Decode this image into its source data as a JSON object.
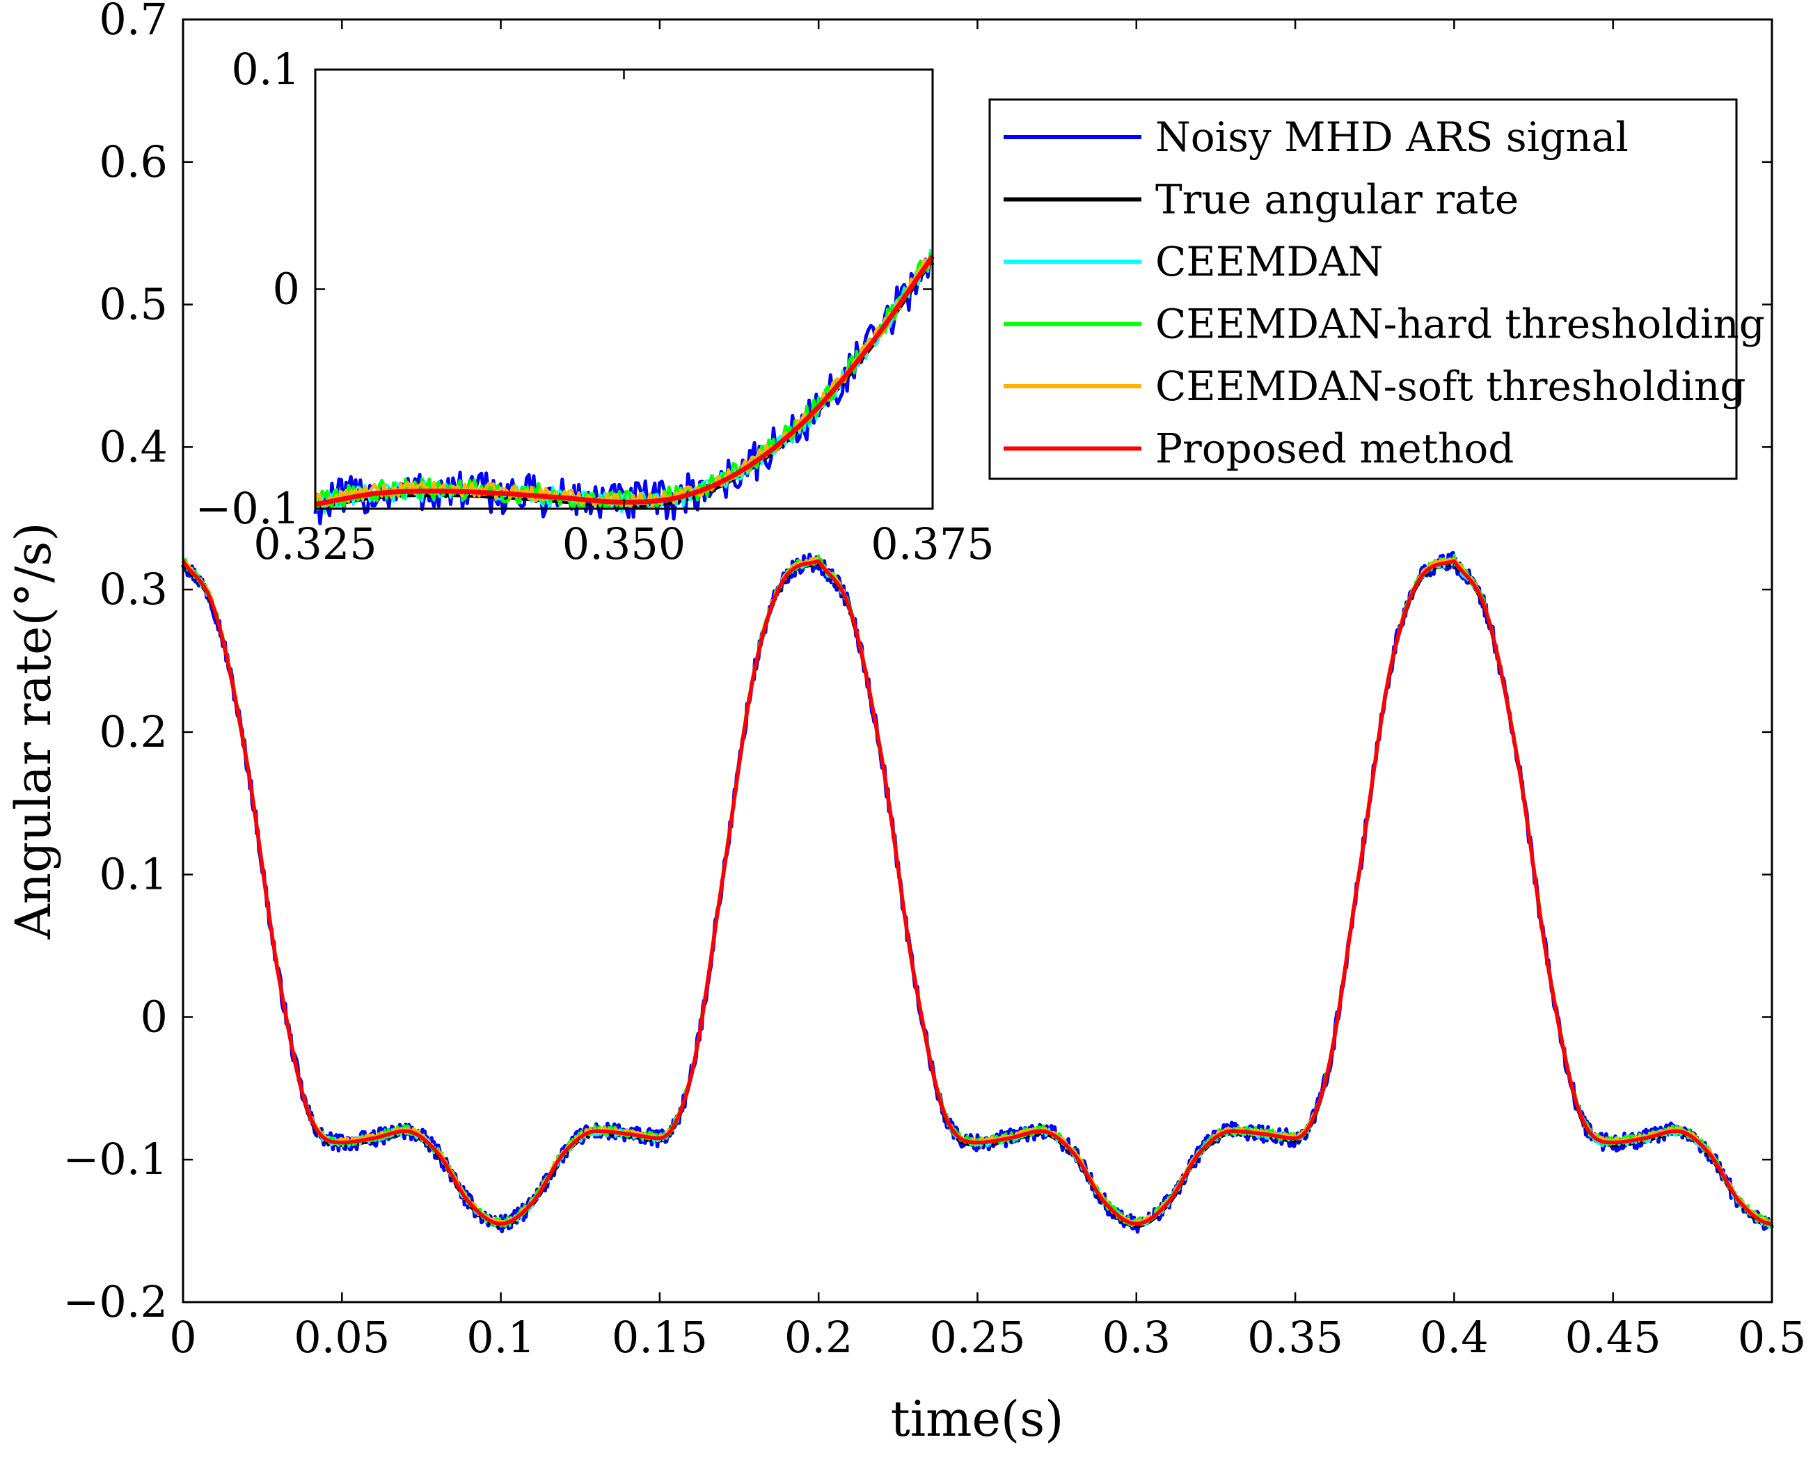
{
  "chart_data": [
    {
      "id": "main",
      "type": "line",
      "xlabel": "time(s)",
      "ylabel": "Angular rate(°/s)",
      "xlim": [
        0,
        0.5
      ],
      "ylim": [
        -0.2,
        0.7
      ],
      "grid": false,
      "xticks": [
        0,
        0.05,
        0.1,
        0.15,
        0.2,
        0.25,
        0.3,
        0.35,
        0.4,
        0.45,
        0.5
      ],
      "xtick_labels": [
        "0",
        "0.05",
        "0.1",
        "0.15",
        "0.2",
        "0.25",
        "0.3",
        "0.35",
        "0.4",
        "0.45",
        "0.5"
      ],
      "yticks": [
        -0.2,
        -0.1,
        0,
        0.1,
        0.2,
        0.3,
        0.4,
        0.5,
        0.6,
        0.7
      ],
      "ytick_labels": [
        "−0.2",
        "−0.1",
        "0",
        "0.1",
        "0.2",
        "0.3",
        "0.4",
        "0.5",
        "0.6",
        "0.7"
      ],
      "legend_position": "top-right",
      "signal_period_s": 0.2,
      "signal_keypoints": {
        "t": [
          0,
          0.01,
          0.02,
          0.03,
          0.04,
          0.05,
          0.06,
          0.07,
          0.08,
          0.09,
          0.1,
          0.11,
          0.12,
          0.13,
          0.14,
          0.15,
          0.16,
          0.17,
          0.18,
          0.19,
          0.2
        ],
        "value": [
          0.32,
          0.285,
          0.18,
          0.03,
          -0.07,
          -0.088,
          -0.085,
          -0.08,
          -0.095,
          -0.13,
          -0.145,
          -0.13,
          -0.095,
          -0.08,
          -0.082,
          -0.085,
          -0.04,
          0.1,
          0.245,
          0.31,
          0.32
        ]
      },
      "series": [
        {
          "name": "Noisy MHD ARS signal",
          "color": "#0000FF",
          "noise": 0.006,
          "offset": 0
        },
        {
          "name": "True angular rate",
          "color": "#000000",
          "noise": 0,
          "offset": -0.002
        },
        {
          "name": "CEEMDAN",
          "color": "#00FFFF",
          "noise": 0.003,
          "offset": 0
        },
        {
          "name": "CEEMDAN-hard thresholding",
          "color": "#00FF00",
          "noise": 0.003,
          "offset": 0.001
        },
        {
          "name": "CEEMDAN-soft thresholding",
          "color": "#FFB300",
          "noise": 0.002,
          "offset": 0.001
        },
        {
          "name": "Proposed method",
          "color": "#FF0000",
          "noise": 0,
          "offset": 0
        }
      ]
    },
    {
      "id": "inset",
      "type": "line",
      "xlim": [
        0.325,
        0.375
      ],
      "ylim": [
        -0.1,
        0.1
      ],
      "xticks": [
        0.325,
        0.35,
        0.375
      ],
      "xtick_labels": [
        "0.325",
        "0.350",
        "0.375"
      ],
      "yticks": [
        -0.1,
        0,
        0.1
      ],
      "ytick_labels": [
        "−0.1",
        "0",
        "0.1"
      ],
      "signal_keypoints": {
        "t": [
          0.325,
          0.33,
          0.335,
          0.34,
          0.345,
          0.35,
          0.355,
          0.36,
          0.365,
          0.37,
          0.375
        ],
        "value": [
          -0.098,
          -0.093,
          -0.092,
          -0.093,
          -0.095,
          -0.097,
          -0.094,
          -0.081,
          -0.058,
          -0.025,
          0.015
        ]
      }
    }
  ]
}
